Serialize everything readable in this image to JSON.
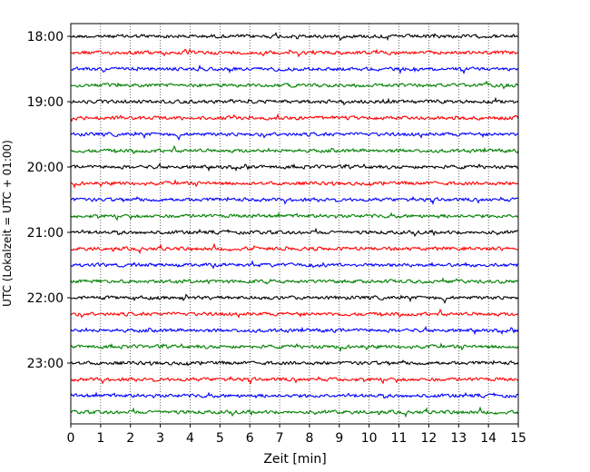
{
  "chart_data": {
    "type": "line",
    "chart_kind": "helicorder",
    "xlabel": "Zeit  [min]",
    "ylabel": "UTC (Lokalzeit = UTC + 01:00)",
    "xlim": [
      0,
      15
    ],
    "x_ticks": [
      0,
      1,
      2,
      3,
      4,
      5,
      6,
      7,
      8,
      9,
      10,
      11,
      12,
      13,
      14,
      15
    ],
    "x_tick_labels": [
      "0",
      "1",
      "2",
      "3",
      "4",
      "5",
      "6",
      "7",
      "8",
      "9",
      "10",
      "11",
      "12",
      "13",
      "14",
      "15"
    ],
    "y_tick_labels": [
      "18:00",
      "19:00",
      "20:00",
      "21:00",
      "22:00",
      "23:00"
    ],
    "trace_minutes": 15,
    "trace_count": 24,
    "trace_colors": [
      "#000000",
      "#ff0000",
      "#0000ff",
      "#008000"
    ],
    "grid": {
      "vertical": true,
      "style": "dotted"
    }
  }
}
